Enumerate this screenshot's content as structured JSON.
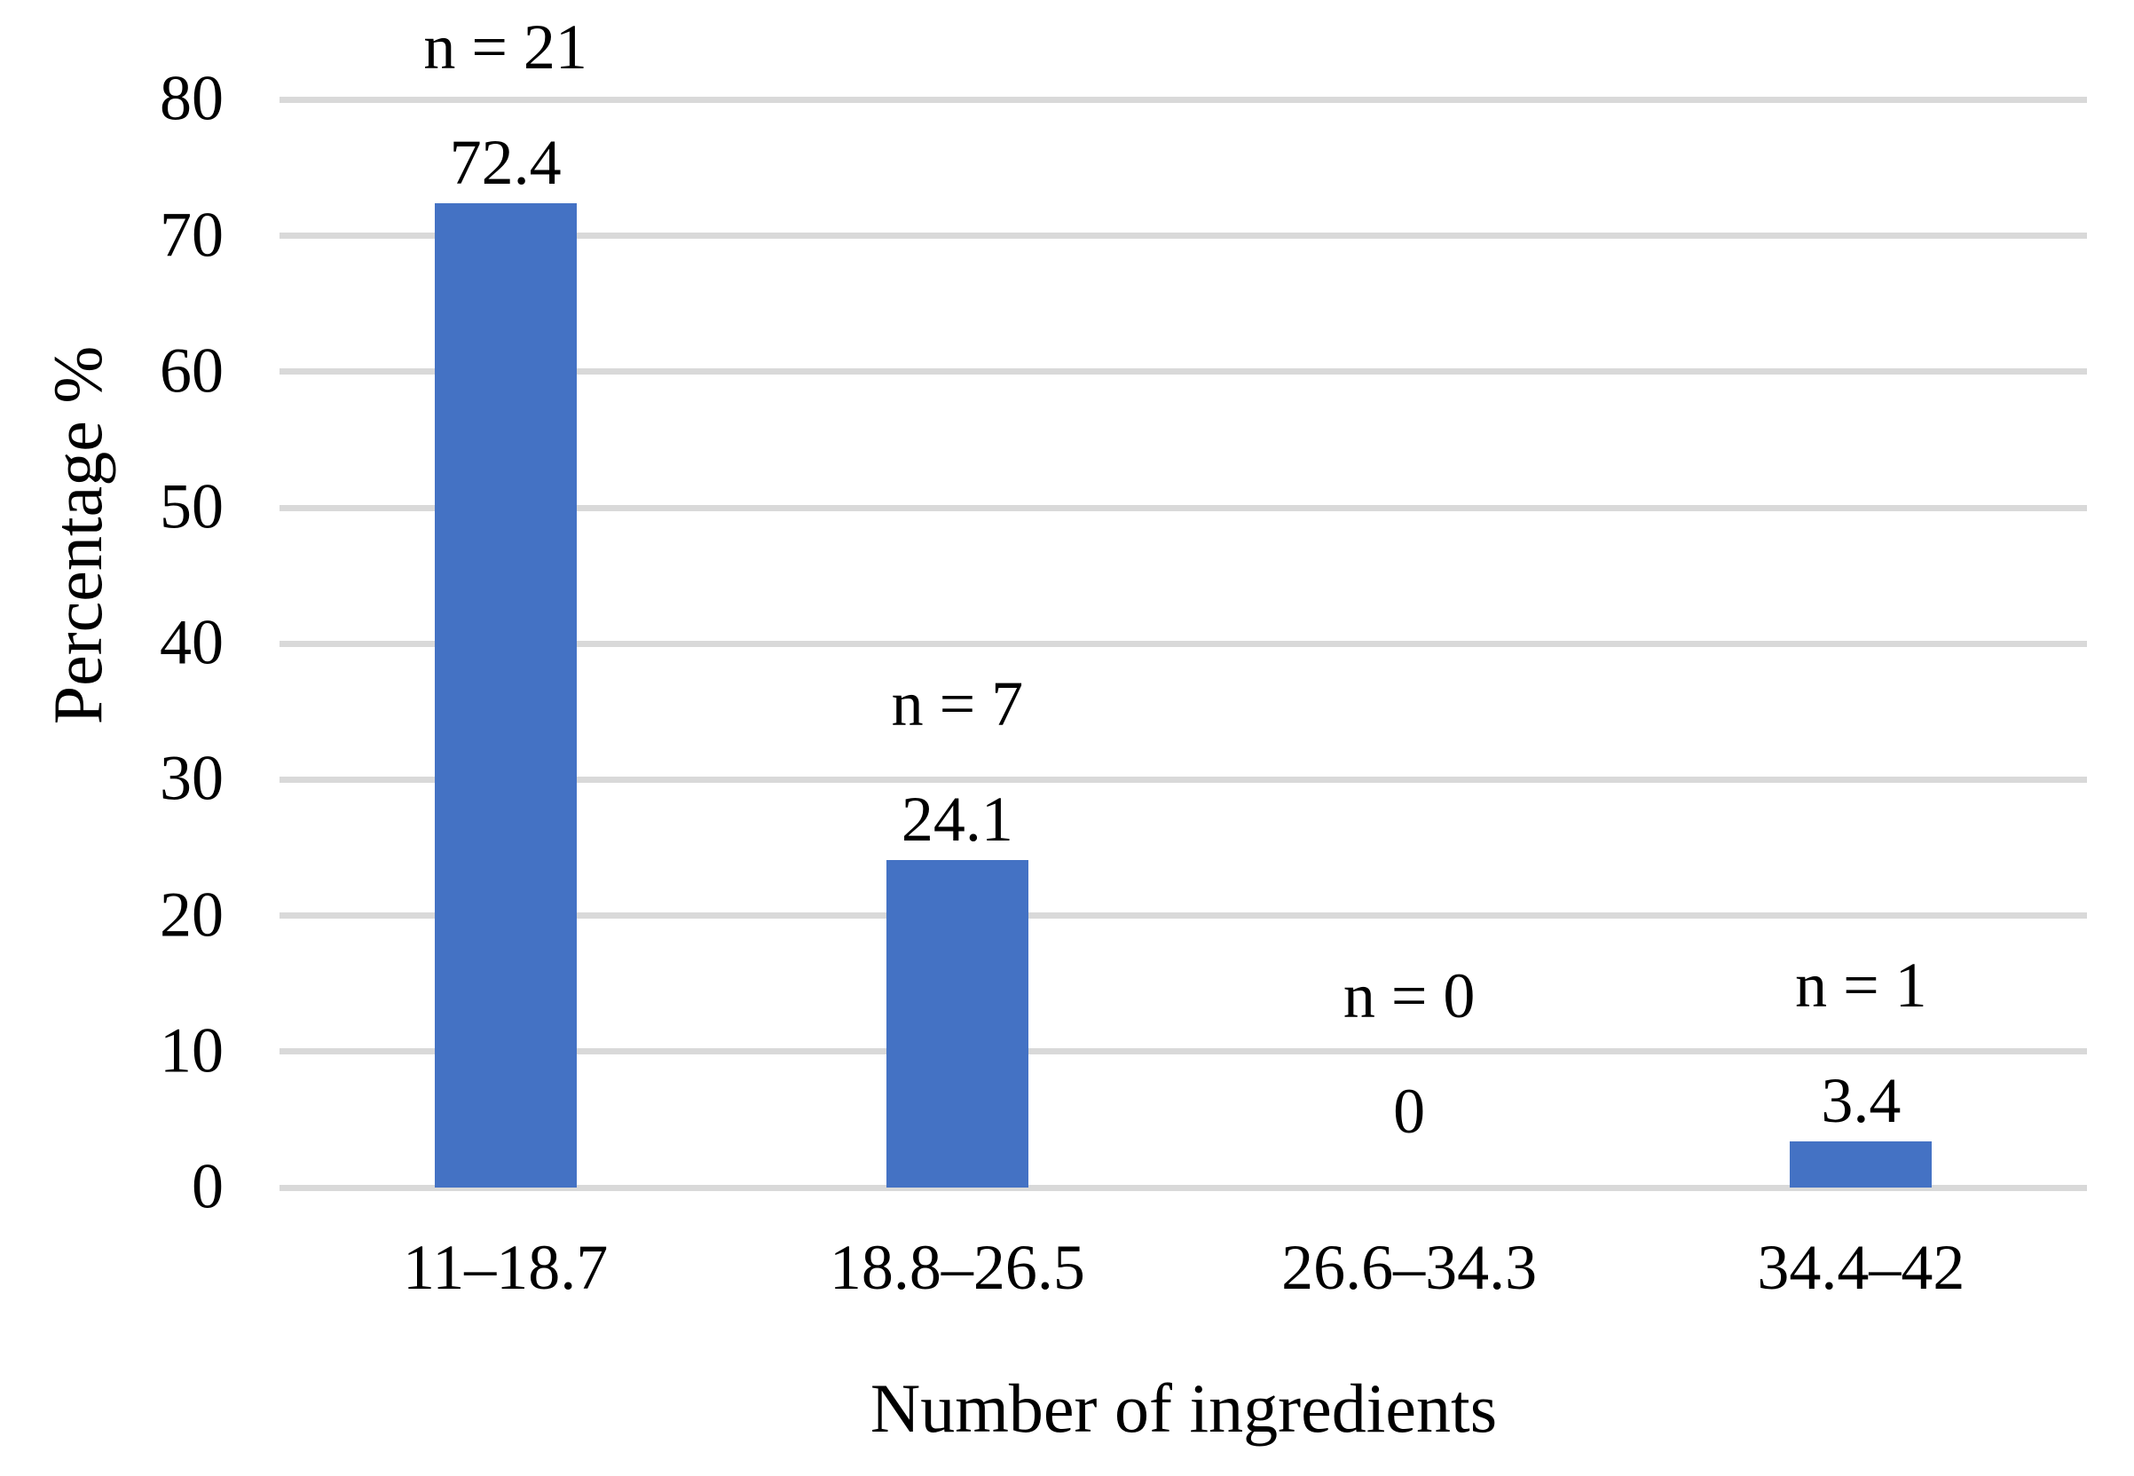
{
  "chart_data": {
    "type": "bar",
    "title": "",
    "xlabel": "Number of ingredients",
    "ylabel": "Percentage %",
    "categories": [
      "11–18.7",
      "18.8–26.5",
      "26.6–34.3",
      "34.4–42"
    ],
    "values": [
      72.4,
      24.1,
      0,
      3.4
    ],
    "value_labels": [
      "72.4",
      "24.1",
      "0",
      "3.4"
    ],
    "count_labels": [
      "n = 21",
      "n = 7",
      "n = 0",
      "n = 1"
    ],
    "yticks": [
      0,
      10,
      20,
      30,
      40,
      50,
      60,
      70,
      80
    ],
    "ylim": [
      0,
      80
    ],
    "grid": true,
    "legend": false,
    "bar_color": "#4472C4",
    "gridline_color": "#D9D9D9",
    "text_color": "#000000"
  }
}
